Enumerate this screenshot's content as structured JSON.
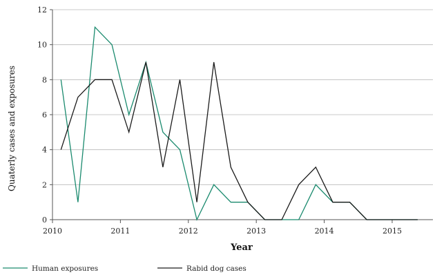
{
  "chart_data": {
    "type": "line",
    "title": "",
    "xlabel": "Year",
    "ylabel": "Quaterly cases and exposures",
    "xlim": [
      2010,
      2015.6
    ],
    "ylim": [
      0,
      12
    ],
    "x_ticks": [
      2010,
      2011,
      2012,
      2013,
      2014,
      2015
    ],
    "x_tick_labels": [
      "2010",
      "2011",
      "2012",
      "2013",
      "2014",
      "2015"
    ],
    "y_ticks": [
      0,
      2,
      4,
      6,
      8,
      10,
      12
    ],
    "y_tick_labels": [
      "0",
      "2",
      "4",
      "6",
      "8",
      "10",
      "12"
    ],
    "grid": "horizontal",
    "legend": "bottom",
    "x": [
      2010.125,
      2010.375,
      2010.625,
      2010.875,
      2011.125,
      2011.375,
      2011.625,
      2011.875,
      2012.125,
      2012.375,
      2012.625,
      2012.875,
      2013.125,
      2013.375,
      2013.625,
      2013.875,
      2014.125,
      2014.375,
      2014.625,
      2014.875,
      2015.125,
      2015.375
    ],
    "series": [
      {
        "name": "Human exposures",
        "color": "#1a8a6e",
        "values": [
          8,
          1,
          11,
          10,
          6,
          9,
          5,
          4,
          0,
          2,
          1,
          1,
          0,
          0,
          0,
          2,
          1,
          1,
          0,
          0,
          0,
          0
        ]
      },
      {
        "name": "Rabid dog cases",
        "color": "#1a1a1a",
        "values": [
          4,
          7,
          8,
          8,
          5,
          9,
          3,
          8,
          1,
          9,
          3,
          1,
          0,
          0,
          2,
          3,
          1,
          1,
          0,
          0,
          0,
          0
        ]
      }
    ]
  }
}
